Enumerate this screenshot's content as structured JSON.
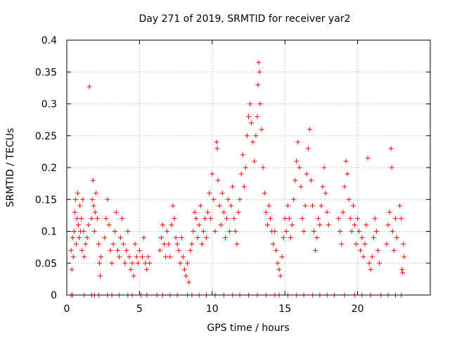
{
  "chart_data": {
    "type": "scatter",
    "title": "Day 271 of 2019, SRMTID for receiver yar2",
    "xlabel": "GPS time / hours",
    "ylabel": "SRMTID / TECUs",
    "xlim": [
      0,
      25
    ],
    "ylim": [
      0,
      0.4
    ],
    "xticks": [
      0,
      5,
      10,
      15,
      20
    ],
    "xtick_labels": [
      "0",
      "5",
      "10",
      "15",
      "20"
    ],
    "yticks": [
      0,
      0.05,
      0.1,
      0.15,
      0.2,
      0.25,
      0.3,
      0.35,
      0.4
    ],
    "ytick_labels": [
      "0",
      "0.05",
      "0.1",
      "0.15",
      "0.2",
      "0.25",
      "0.3",
      "0.35",
      "0.4"
    ],
    "grid": true,
    "marker": "+",
    "color": "#ff0000",
    "series": [
      {
        "name": "SRMTID",
        "points": [
          [
            0.3,
            0.07
          ],
          [
            0.35,
            0.04
          ],
          [
            0.4,
            0.09
          ],
          [
            0.45,
            0.06
          ],
          [
            0.5,
            0.1
          ],
          [
            0.55,
            0.13
          ],
          [
            0.6,
            0.15
          ],
          [
            0.65,
            0.08
          ],
          [
            0.7,
            0.12
          ],
          [
            0.75,
            0.16
          ],
          [
            0.8,
            0.11
          ],
          [
            0.85,
            0.09
          ],
          [
            0.9,
            0.14
          ],
          [
            0.95,
            0.1
          ],
          [
            1.0,
            0.12
          ],
          [
            1.05,
            0.07
          ],
          [
            1.1,
            0.15
          ],
          [
            1.15,
            0.1
          ],
          [
            1.2,
            0.06
          ],
          [
            1.3,
            0.08
          ],
          [
            1.4,
            0.09
          ],
          [
            1.5,
            0.11
          ],
          [
            1.55,
            0.327
          ],
          [
            1.7,
            0.12
          ],
          [
            1.75,
            0.15
          ],
          [
            1.8,
            0.18
          ],
          [
            1.85,
            0.14
          ],
          [
            1.9,
            0.1
          ],
          [
            1.95,
            0.13
          ],
          [
            2.0,
            0.16
          ],
          [
            2.1,
            0.12
          ],
          [
            2.2,
            0.08
          ],
          [
            2.25,
            0.05
          ],
          [
            2.3,
            0.03
          ],
          [
            2.35,
            0.06
          ],
          [
            2.6,
            0.09
          ],
          [
            2.7,
            0.12
          ],
          [
            2.8,
            0.15
          ],
          [
            2.9,
            0.11
          ],
          [
            3.0,
            0.07
          ],
          [
            3.1,
            0.05
          ],
          [
            3.2,
            0.08
          ],
          [
            3.3,
            0.1
          ],
          [
            3.4,
            0.13
          ],
          [
            3.5,
            0.07
          ],
          [
            3.6,
            0.06
          ],
          [
            3.7,
            0.09
          ],
          [
            3.8,
            0.12
          ],
          [
            3.9,
            0.08
          ],
          [
            4.0,
            0.05
          ],
          [
            4.1,
            0.07
          ],
          [
            4.2,
            0.1
          ],
          [
            4.3,
            0.06
          ],
          [
            4.4,
            0.04
          ],
          [
            4.5,
            0.05
          ],
          [
            4.6,
            0.03
          ],
          [
            4.7,
            0.08
          ],
          [
            4.8,
            0.06
          ],
          [
            4.9,
            0.05
          ],
          [
            5.0,
            0.07
          ],
          [
            5.2,
            0.06
          ],
          [
            5.3,
            0.09
          ],
          [
            5.4,
            0.05
          ],
          [
            5.5,
            0.04
          ],
          [
            5.6,
            0.06
          ],
          [
            5.7,
            0.05
          ],
          [
            6.4,
            0.07
          ],
          [
            6.5,
            0.09
          ],
          [
            6.6,
            0.11
          ],
          [
            6.7,
            0.08
          ],
          [
            6.8,
            0.06
          ],
          [
            6.9,
            0.1
          ],
          [
            7.0,
            0.08
          ],
          [
            7.1,
            0.06
          ],
          [
            7.2,
            0.11
          ],
          [
            7.3,
            0.14
          ],
          [
            7.4,
            0.12
          ],
          [
            7.5,
            0.09
          ],
          [
            7.6,
            0.08
          ],
          [
            7.7,
            0.07
          ],
          [
            7.8,
            0.05
          ],
          [
            7.9,
            0.09
          ],
          [
            8.0,
            0.06
          ],
          [
            8.1,
            0.04
          ],
          [
            8.2,
            0.03
          ],
          [
            8.3,
            0.05
          ],
          [
            8.4,
            0.02
          ],
          [
            8.5,
            0.07
          ],
          [
            8.6,
            0.08
          ],
          [
            8.7,
            0.1
          ],
          [
            8.8,
            0.13
          ],
          [
            8.9,
            0.12
          ],
          [
            9.0,
            0.09
          ],
          [
            9.1,
            0.11
          ],
          [
            9.2,
            0.14
          ],
          [
            9.3,
            0.08
          ],
          [
            9.4,
            0.1
          ],
          [
            9.5,
            0.12
          ],
          [
            9.6,
            0.09
          ],
          [
            9.7,
            0.13
          ],
          [
            9.8,
            0.16
          ],
          [
            9.9,
            0.12
          ],
          [
            10.0,
            0.19
          ],
          [
            10.1,
            0.15
          ],
          [
            10.2,
            0.1
          ],
          [
            10.3,
            0.24
          ],
          [
            10.35,
            0.23
          ],
          [
            10.4,
            0.18
          ],
          [
            10.5,
            0.14
          ],
          [
            10.6,
            0.11
          ],
          [
            10.7,
            0.16
          ],
          [
            10.8,
            0.13
          ],
          [
            10.9,
            0.09
          ],
          [
            11.0,
            0.12
          ],
          [
            11.1,
            0.15
          ],
          [
            11.2,
            0.1
          ],
          [
            11.3,
            0.14
          ],
          [
            11.4,
            0.17
          ],
          [
            11.5,
            0.12
          ],
          [
            11.6,
            0.1
          ],
          [
            11.7,
            0.08
          ],
          [
            11.8,
            0.13
          ],
          [
            11.9,
            0.15
          ],
          [
            12.0,
            0.19
          ],
          [
            12.1,
            0.22
          ],
          [
            12.2,
            0.17
          ],
          [
            12.3,
            0.2
          ],
          [
            12.4,
            0.25
          ],
          [
            12.5,
            0.28
          ],
          [
            12.6,
            0.3
          ],
          [
            12.7,
            0.27
          ],
          [
            12.8,
            0.24
          ],
          [
            12.9,
            0.21
          ],
          [
            13.0,
            0.25
          ],
          [
            13.1,
            0.28
          ],
          [
            13.15,
            0.33
          ],
          [
            13.2,
            0.365
          ],
          [
            13.25,
            0.35
          ],
          [
            13.3,
            0.3
          ],
          [
            13.4,
            0.26
          ],
          [
            13.5,
            0.2
          ],
          [
            13.6,
            0.16
          ],
          [
            13.7,
            0.13
          ],
          [
            13.8,
            0.11
          ],
          [
            13.9,
            0.14
          ],
          [
            14.0,
            0.12
          ],
          [
            14.1,
            0.1
          ],
          [
            14.2,
            0.08
          ],
          [
            14.3,
            0.1
          ],
          [
            14.4,
            0.07
          ],
          [
            14.5,
            0.05
          ],
          [
            14.6,
            0.04
          ],
          [
            14.7,
            0.03
          ],
          [
            14.8,
            0.06
          ],
          [
            14.9,
            0.09
          ],
          [
            15.0,
            0.12
          ],
          [
            15.1,
            0.1
          ],
          [
            15.2,
            0.14
          ],
          [
            15.3,
            0.12
          ],
          [
            15.4,
            0.09
          ],
          [
            15.5,
            0.11
          ],
          [
            15.6,
            0.15
          ],
          [
            15.7,
            0.18
          ],
          [
            15.8,
            0.21
          ],
          [
            15.9,
            0.24
          ],
          [
            16.0,
            0.2
          ],
          [
            16.1,
            0.17
          ],
          [
            16.2,
            0.12
          ],
          [
            16.3,
            0.1
          ],
          [
            16.4,
            0.14
          ],
          [
            16.5,
            0.19
          ],
          [
            16.6,
            0.23
          ],
          [
            16.7,
            0.26
          ],
          [
            16.8,
            0.18
          ],
          [
            16.9,
            0.14
          ],
          [
            17.0,
            0.1
          ],
          [
            17.1,
            0.07
          ],
          [
            17.2,
            0.09
          ],
          [
            17.3,
            0.12
          ],
          [
            17.4,
            0.11
          ],
          [
            17.5,
            0.14
          ],
          [
            17.6,
            0.17
          ],
          [
            17.7,
            0.2
          ],
          [
            17.8,
            0.16
          ],
          [
            17.9,
            0.13
          ],
          [
            18.0,
            0.11
          ],
          [
            18.7,
            0.12
          ],
          [
            18.8,
            0.1
          ],
          [
            18.9,
            0.08
          ],
          [
            19.0,
            0.13
          ],
          [
            19.1,
            0.17
          ],
          [
            19.2,
            0.21
          ],
          [
            19.3,
            0.19
          ],
          [
            19.4,
            0.15
          ],
          [
            19.5,
            0.12
          ],
          [
            19.6,
            0.1
          ],
          [
            19.7,
            0.14
          ],
          [
            19.8,
            0.11
          ],
          [
            19.9,
            0.08
          ],
          [
            20.0,
            0.12
          ],
          [
            20.1,
            0.1
          ],
          [
            20.2,
            0.07
          ],
          [
            20.3,
            0.09
          ],
          [
            20.4,
            0.06
          ],
          [
            20.5,
            0.08
          ],
          [
            20.6,
            0.11
          ],
          [
            20.7,
            0.215
          ],
          [
            20.8,
            0.05
          ],
          [
            20.9,
            0.04
          ],
          [
            21.0,
            0.06
          ],
          [
            21.1,
            0.09
          ],
          [
            21.2,
            0.12
          ],
          [
            21.3,
            0.1
          ],
          [
            21.4,
            0.07
          ],
          [
            21.5,
            0.05
          ],
          [
            22.0,
            0.08
          ],
          [
            22.1,
            0.11
          ],
          [
            22.2,
            0.13
          ],
          [
            22.3,
            0.23
          ],
          [
            22.35,
            0.2
          ],
          [
            22.4,
            0.1
          ],
          [
            22.5,
            0.07
          ],
          [
            22.6,
            0.12
          ],
          [
            22.7,
            0.09
          ],
          [
            22.9,
            0.14
          ],
          [
            23.0,
            0.12
          ],
          [
            23.05,
            0.04
          ],
          [
            23.1,
            0.035
          ],
          [
            23.15,
            0.08
          ],
          [
            23.2,
            0.06
          ],
          [
            0.3,
            0
          ],
          [
            0.4,
            0
          ],
          [
            1.2,
            0
          ],
          [
            1.7,
            0
          ],
          [
            1.9,
            0
          ],
          [
            2.2,
            0
          ],
          [
            2.8,
            0
          ],
          [
            3.1,
            0
          ],
          [
            3.6,
            0
          ],
          [
            4.2,
            0
          ],
          [
            4.5,
            0
          ],
          [
            5.1,
            0
          ],
          [
            5.5,
            0
          ],
          [
            6.2,
            0
          ],
          [
            6.6,
            0
          ],
          [
            7.1,
            0
          ],
          [
            7.6,
            0
          ],
          [
            8.3,
            0
          ],
          [
            8.6,
            0
          ],
          [
            9.1,
            0
          ],
          [
            9.6,
            0
          ],
          [
            10.2,
            0
          ],
          [
            10.8,
            0
          ],
          [
            11.4,
            0
          ],
          [
            11.9,
            0
          ],
          [
            12.5,
            0
          ],
          [
            13.1,
            0
          ],
          [
            13.7,
            0
          ],
          [
            14.3,
            0
          ],
          [
            14.6,
            0
          ],
          [
            15.2,
            0
          ],
          [
            15.8,
            0
          ],
          [
            16.3,
            0
          ],
          [
            16.9,
            0
          ],
          [
            17.4,
            0
          ],
          [
            17.9,
            0
          ],
          [
            18.4,
            0
          ],
          [
            19.1,
            0
          ],
          [
            19.8,
            0
          ],
          [
            20.3,
            0
          ],
          [
            20.9,
            0
          ],
          [
            21.6,
            0
          ],
          [
            22.1,
            0
          ],
          [
            22.6,
            0
          ],
          [
            23.0,
            0
          ]
        ]
      }
    ]
  }
}
